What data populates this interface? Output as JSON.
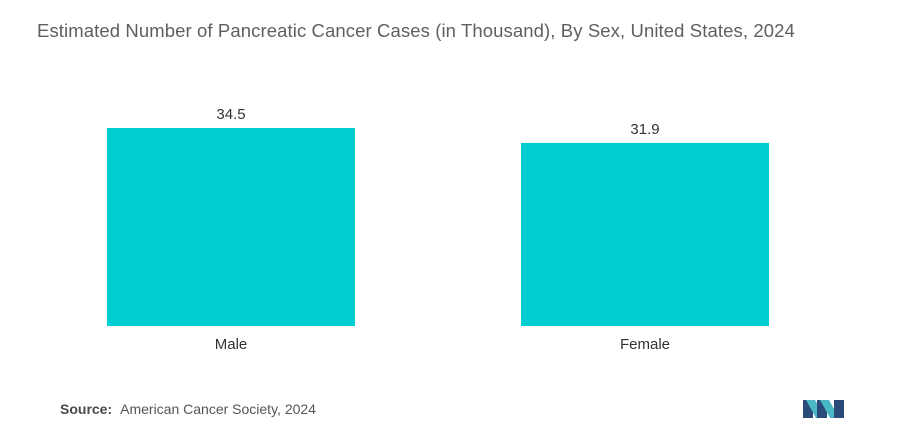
{
  "chart_data": {
    "type": "bar",
    "title": "Estimated Number of Pancreatic Cancer Cases (in Thousand), By Sex, United States, 2024",
    "categories": [
      "Male",
      "Female"
    ],
    "values": [
      34.5,
      31.9
    ],
    "data_labels": [
      "34.5",
      "31.9"
    ],
    "xlabel": "",
    "ylabel": "",
    "ylim": [
      0,
      34.5
    ],
    "grid": false,
    "legend": "none",
    "bar_color": "#00CED1"
  },
  "source": {
    "label": "Source:",
    "text": "American Cancer Society, 2024"
  },
  "colors": {
    "bar": "#00CED1",
    "logo_dark": "#2a4a7a",
    "logo_teal": "#4ab8c4"
  }
}
